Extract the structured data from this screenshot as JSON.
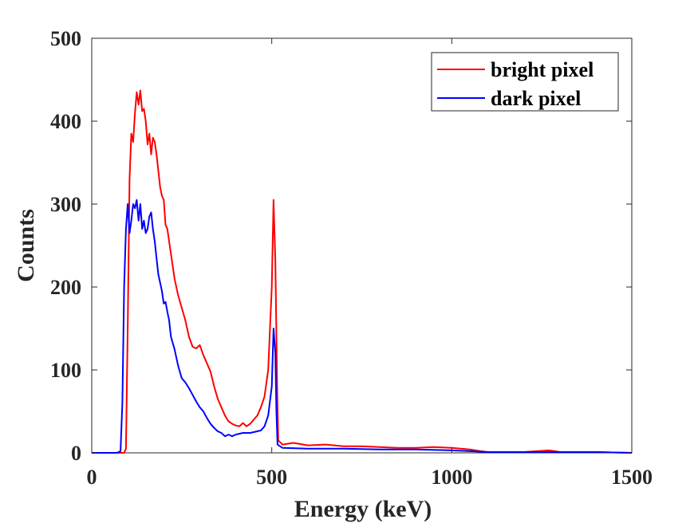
{
  "chart_data": {
    "type": "line",
    "title": "",
    "xlabel": "Energy (keV)",
    "ylabel": "Counts",
    "xlim": [
      0,
      1500
    ],
    "ylim": [
      0,
      500
    ],
    "xticks": [
      0,
      500,
      1000,
      1500
    ],
    "yticks": [
      0,
      100,
      200,
      300,
      400,
      500
    ],
    "grid": false,
    "legend_position": "top-right",
    "series": [
      {
        "name": "bright pixel",
        "color": "#ff0000",
        "points": [
          [
            0,
            0
          ],
          [
            80,
            0
          ],
          [
            90,
            0
          ],
          [
            95,
            5
          ],
          [
            100,
            150
          ],
          [
            105,
            330
          ],
          [
            110,
            385
          ],
          [
            115,
            375
          ],
          [
            120,
            410
          ],
          [
            125,
            435
          ],
          [
            130,
            420
          ],
          [
            135,
            437
          ],
          [
            140,
            412
          ],
          [
            145,
            415
          ],
          [
            150,
            400
          ],
          [
            155,
            372
          ],
          [
            160,
            385
          ],
          [
            165,
            360
          ],
          [
            170,
            380
          ],
          [
            175,
            375
          ],
          [
            180,
            360
          ],
          [
            185,
            340
          ],
          [
            190,
            320
          ],
          [
            195,
            310
          ],
          [
            200,
            305
          ],
          [
            205,
            275
          ],
          [
            210,
            270
          ],
          [
            215,
            255
          ],
          [
            220,
            240
          ],
          [
            230,
            210
          ],
          [
            240,
            190
          ],
          [
            250,
            175
          ],
          [
            260,
            160
          ],
          [
            270,
            140
          ],
          [
            280,
            128
          ],
          [
            290,
            126
          ],
          [
            300,
            130
          ],
          [
            310,
            118
          ],
          [
            320,
            108
          ],
          [
            330,
            98
          ],
          [
            340,
            80
          ],
          [
            350,
            65
          ],
          [
            360,
            55
          ],
          [
            370,
            45
          ],
          [
            380,
            38
          ],
          [
            390,
            35
          ],
          [
            400,
            33
          ],
          [
            410,
            32
          ],
          [
            420,
            36
          ],
          [
            430,
            32
          ],
          [
            440,
            35
          ],
          [
            450,
            40
          ],
          [
            460,
            45
          ],
          [
            470,
            55
          ],
          [
            480,
            68
          ],
          [
            490,
            100
          ],
          [
            500,
            200
          ],
          [
            505,
            305
          ],
          [
            510,
            230
          ],
          [
            515,
            80
          ],
          [
            518,
            15
          ],
          [
            530,
            10
          ],
          [
            560,
            12
          ],
          [
            600,
            9
          ],
          [
            650,
            10
          ],
          [
            700,
            8
          ],
          [
            750,
            8
          ],
          [
            800,
            7
          ],
          [
            850,
            6
          ],
          [
            900,
            6
          ],
          [
            950,
            7
          ],
          [
            1000,
            6
          ],
          [
            1050,
            4
          ],
          [
            1080,
            2
          ],
          [
            1100,
            1
          ],
          [
            1200,
            1
          ],
          [
            1270,
            3
          ],
          [
            1285,
            2
          ],
          [
            1300,
            1
          ],
          [
            1400,
            1
          ],
          [
            1500,
            0
          ]
        ]
      },
      {
        "name": "dark pixel",
        "color": "#0000ff",
        "points": [
          [
            0,
            0
          ],
          [
            70,
            0
          ],
          [
            80,
            2
          ],
          [
            85,
            60
          ],
          [
            90,
            200
          ],
          [
            95,
            270
          ],
          [
            100,
            300
          ],
          [
            105,
            265
          ],
          [
            110,
            280
          ],
          [
            115,
            300
          ],
          [
            120,
            295
          ],
          [
            125,
            305
          ],
          [
            130,
            280
          ],
          [
            135,
            300
          ],
          [
            140,
            270
          ],
          [
            145,
            280
          ],
          [
            150,
            265
          ],
          [
            155,
            270
          ],
          [
            160,
            285
          ],
          [
            165,
            290
          ],
          [
            170,
            270
          ],
          [
            175,
            255
          ],
          [
            180,
            235
          ],
          [
            185,
            215
          ],
          [
            190,
            205
          ],
          [
            195,
            195
          ],
          [
            200,
            180
          ],
          [
            205,
            182
          ],
          [
            210,
            170
          ],
          [
            215,
            160
          ],
          [
            220,
            140
          ],
          [
            230,
            125
          ],
          [
            240,
            105
          ],
          [
            250,
            90
          ],
          [
            260,
            85
          ],
          [
            270,
            78
          ],
          [
            280,
            70
          ],
          [
            290,
            62
          ],
          [
            300,
            55
          ],
          [
            310,
            50
          ],
          [
            320,
            42
          ],
          [
            330,
            35
          ],
          [
            340,
            30
          ],
          [
            350,
            26
          ],
          [
            360,
            24
          ],
          [
            370,
            20
          ],
          [
            380,
            22
          ],
          [
            390,
            20
          ],
          [
            400,
            22
          ],
          [
            420,
            24
          ],
          [
            440,
            24
          ],
          [
            460,
            26
          ],
          [
            470,
            27
          ],
          [
            480,
            32
          ],
          [
            490,
            45
          ],
          [
            500,
            80
          ],
          [
            505,
            150
          ],
          [
            510,
            120
          ],
          [
            513,
            50
          ],
          [
            516,
            10
          ],
          [
            530,
            6
          ],
          [
            600,
            5
          ],
          [
            700,
            5
          ],
          [
            800,
            4
          ],
          [
            900,
            4
          ],
          [
            1000,
            3
          ],
          [
            1050,
            2
          ],
          [
            1100,
            1
          ],
          [
            1200,
            1
          ],
          [
            1300,
            1
          ],
          [
            1400,
            1
          ],
          [
            1500,
            0
          ]
        ]
      }
    ]
  }
}
